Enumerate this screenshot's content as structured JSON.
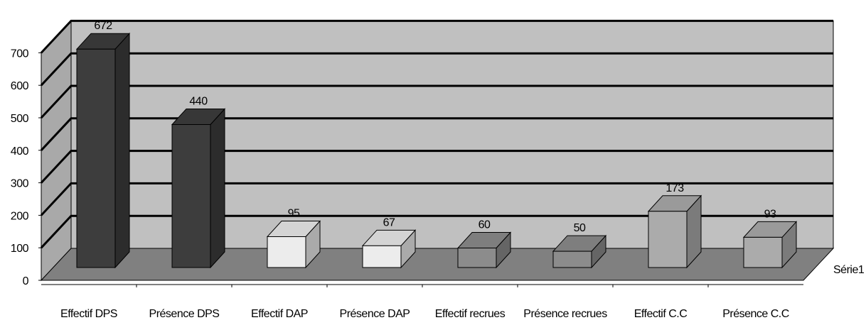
{
  "chart_data": {
    "type": "bar",
    "categories": [
      "Effectif DPS",
      "Présence DPS",
      "Effectif DAP",
      "Présence DAP",
      "Effectif recrues",
      "Présence recrues",
      "Effectif C.C",
      "Présence C.C"
    ],
    "series": [
      {
        "name": "Série1",
        "values": [
          672,
          440,
          95,
          67,
          60,
          50,
          173,
          93
        ]
      }
    ],
    "data_labels": [
      "672",
      "440",
      "95",
      "67",
      "60",
      "50",
      "173",
      "93"
    ],
    "y_ticks": [
      "0",
      "100",
      "200",
      "300",
      "400",
      "500",
      "600",
      "700"
    ],
    "ylim": [
      0,
      700
    ],
    "three_d": true,
    "grid": true,
    "bar_colors": [
      "#3d3d3d",
      "#3d3d3d",
      "#ececec",
      "#ececec",
      "#8c8c8c",
      "#8c8c8c",
      "#ababab",
      "#ababab"
    ],
    "back_wall_color": "#c0c0c0",
    "floor_color": "#808080"
  }
}
